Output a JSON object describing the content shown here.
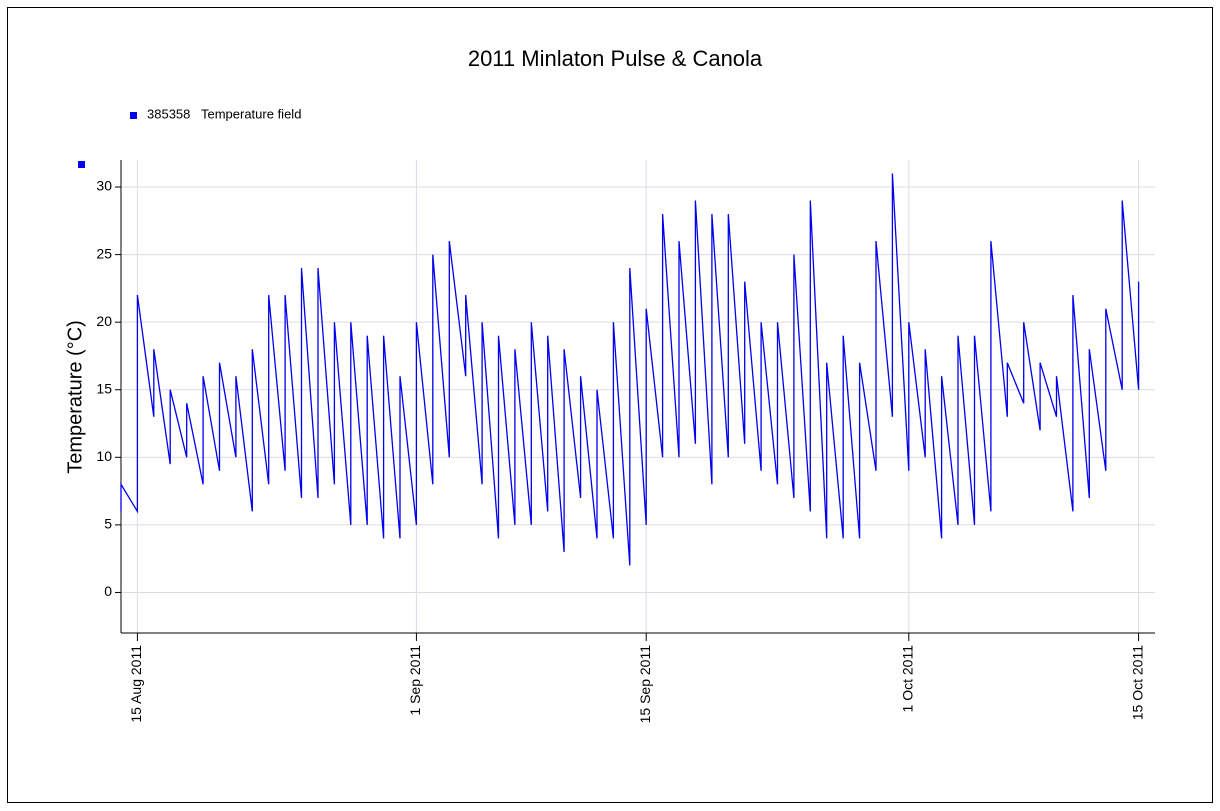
{
  "chart_data": {
    "type": "line",
    "title": "2011 Minlaton Pulse & Canola",
    "y_label": "Temperature (°C)",
    "x": [
      "2011-08-14",
      "2011-08-14",
      "2011-08-15",
      "2011-08-15",
      "2011-08-16",
      "2011-08-16",
      "2011-08-17",
      "2011-08-17",
      "2011-08-18",
      "2011-08-18",
      "2011-08-19",
      "2011-08-19",
      "2011-08-20",
      "2011-08-20",
      "2011-08-21",
      "2011-08-21",
      "2011-08-22",
      "2011-08-22",
      "2011-08-23",
      "2011-08-23",
      "2011-08-24",
      "2011-08-24",
      "2011-08-25",
      "2011-08-25",
      "2011-08-26",
      "2011-08-26",
      "2011-08-27",
      "2011-08-27",
      "2011-08-28",
      "2011-08-28",
      "2011-08-29",
      "2011-08-29",
      "2011-08-30",
      "2011-08-30",
      "2011-08-31",
      "2011-08-31",
      "2011-09-01",
      "2011-09-01",
      "2011-09-02",
      "2011-09-02",
      "2011-09-03",
      "2011-09-03",
      "2011-09-04",
      "2011-09-04",
      "2011-09-05",
      "2011-09-05",
      "2011-09-06",
      "2011-09-06",
      "2011-09-07",
      "2011-09-07",
      "2011-09-08",
      "2011-09-08",
      "2011-09-09",
      "2011-09-09",
      "2011-09-10",
      "2011-09-10",
      "2011-09-11",
      "2011-09-11",
      "2011-09-12",
      "2011-09-12",
      "2011-09-13",
      "2011-09-13",
      "2011-09-14",
      "2011-09-14",
      "2011-09-15",
      "2011-09-15",
      "2011-09-16",
      "2011-09-16",
      "2011-09-17",
      "2011-09-17",
      "2011-09-18",
      "2011-09-18",
      "2011-09-19",
      "2011-09-19",
      "2011-09-20",
      "2011-09-20",
      "2011-09-21",
      "2011-09-21",
      "2011-09-22",
      "2011-09-22",
      "2011-09-23",
      "2011-09-23",
      "2011-09-24",
      "2011-09-24",
      "2011-09-25",
      "2011-09-25",
      "2011-09-26",
      "2011-09-26",
      "2011-09-27",
      "2011-09-27",
      "2011-09-28",
      "2011-09-28",
      "2011-09-29",
      "2011-09-29",
      "2011-09-30",
      "2011-09-30",
      "2011-10-01",
      "2011-10-01",
      "2011-10-02",
      "2011-10-02",
      "2011-10-03",
      "2011-10-03",
      "2011-10-04",
      "2011-10-04",
      "2011-10-05",
      "2011-10-05",
      "2011-10-06",
      "2011-10-06",
      "2011-10-07",
      "2011-10-07",
      "2011-10-08",
      "2011-10-08",
      "2011-10-09",
      "2011-10-09",
      "2011-10-10",
      "2011-10-10",
      "2011-10-11",
      "2011-10-11",
      "2011-10-12",
      "2011-10-12",
      "2011-10-13",
      "2011-10-13",
      "2011-10-14",
      "2011-10-14",
      "2011-10-15",
      "2011-10-15"
    ],
    "series": [
      {
        "name": "385358   Temperature field",
        "color": "#0000ee",
        "values": [
          6,
          8,
          6,
          22,
          13,
          18,
          9.5,
          15,
          10,
          14,
          8,
          16,
          9,
          17,
          10,
          16,
          6,
          18,
          8,
          22,
          9,
          22,
          7,
          24,
          7,
          24,
          8,
          20,
          5,
          20,
          5,
          19,
          4,
          19,
          4,
          16,
          5,
          20,
          8,
          25,
          10,
          26,
          16,
          22,
          8,
          20,
          4,
          19,
          5,
          18,
          5,
          20,
          6,
          19,
          3,
          18,
          7,
          16,
          4,
          15,
          4,
          20,
          2,
          24,
          5,
          21,
          10,
          28,
          10,
          26,
          11,
          29,
          8,
          28,
          10,
          28,
          11,
          23,
          9,
          20,
          8,
          20,
          7,
          25,
          6,
          29,
          4,
          17,
          4,
          19,
          4,
          17,
          9,
          26,
          13,
          31,
          9,
          20,
          10,
          18,
          4,
          16,
          5,
          19,
          5,
          19,
          6,
          26,
          13,
          17,
          14,
          20,
          12,
          17,
          13,
          16,
          6,
          22,
          7,
          18,
          9,
          21,
          15,
          29,
          15,
          23
        ]
      }
    ],
    "xlim": [
      "2011-08-14",
      "2011-10-16"
    ],
    "xticks": [
      {
        "value": "2011-08-15",
        "label": "15 Aug 2011"
      },
      {
        "value": "2011-09-01",
        "label": "1 Sep 2011"
      },
      {
        "value": "2011-09-15",
        "label": "15 Sep 2011"
      },
      {
        "value": "2011-10-01",
        "label": "1 Oct 2011"
      },
      {
        "value": "2011-10-15",
        "label": "15 Oct 2011"
      }
    ],
    "ylim": [
      -3,
      32
    ],
    "yticks": [
      0,
      5,
      10,
      15,
      20,
      25,
      30
    ],
    "grid": true
  }
}
